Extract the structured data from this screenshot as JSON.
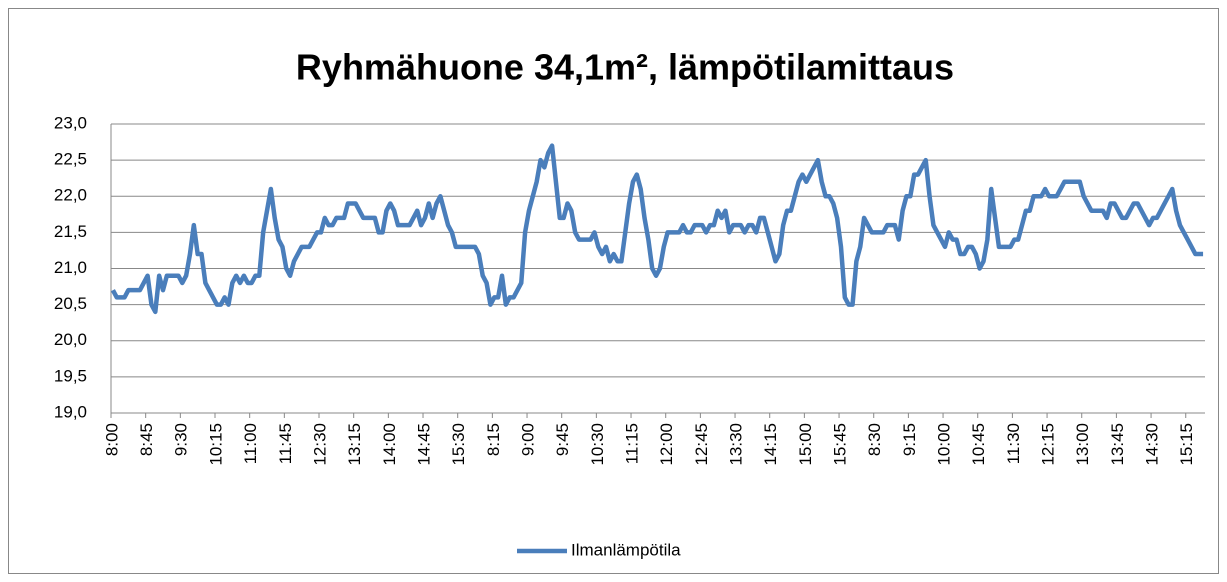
{
  "chart_data": {
    "type": "line",
    "title": "Ryhmähuone 34,1m², lämpötilamittaus",
    "categories": [
      "8:00",
      null,
      null,
      null,
      null,
      null,
      null,
      null,
      null,
      "8:45",
      null,
      null,
      null,
      null,
      null,
      null,
      null,
      null,
      "9:30",
      null,
      null,
      null,
      null,
      null,
      null,
      null,
      null,
      "10:15",
      null,
      null,
      null,
      null,
      null,
      null,
      null,
      null,
      "11:00",
      null,
      null,
      null,
      null,
      null,
      null,
      null,
      null,
      "11:45",
      null,
      null,
      null,
      null,
      null,
      null,
      null,
      null,
      "12:30",
      null,
      null,
      null,
      null,
      null,
      null,
      null,
      null,
      "13:15",
      null,
      null,
      null,
      null,
      null,
      null,
      null,
      null,
      "14:00",
      null,
      null,
      null,
      null,
      null,
      null,
      null,
      null,
      "14:45",
      null,
      null,
      null,
      null,
      null,
      null,
      null,
      null,
      "15:30",
      null,
      null,
      null,
      null,
      null,
      null,
      null,
      null,
      "8:15",
      null,
      null,
      null,
      null,
      null,
      null,
      null,
      null,
      "9:00",
      null,
      null,
      null,
      null,
      null,
      null,
      null,
      null,
      "9:45",
      null,
      null,
      null,
      null,
      null,
      null,
      null,
      null,
      "10:30",
      null,
      null,
      null,
      null,
      null,
      null,
      null,
      null,
      "11:15",
      null,
      null,
      null,
      null,
      null,
      null,
      null,
      null,
      "12:00",
      null,
      null,
      null,
      null,
      null,
      null,
      null,
      null,
      "12:45",
      null,
      null,
      null,
      null,
      null,
      null,
      null,
      null,
      "13:30",
      null,
      null,
      null,
      null,
      null,
      null,
      null,
      null,
      "14:15",
      null,
      null,
      null,
      null,
      null,
      null,
      null,
      null,
      "15:00",
      null,
      null,
      null,
      null,
      null,
      null,
      null,
      null,
      "15:45",
      null,
      null,
      null,
      null,
      null,
      null,
      null,
      null,
      "8:30",
      null,
      null,
      null,
      null,
      null,
      null,
      null,
      null,
      "9:15",
      null,
      null,
      null,
      null,
      null,
      null,
      null,
      null,
      "10:00",
      null,
      null,
      null,
      null,
      null,
      null,
      null,
      null,
      "10:45",
      null,
      null,
      null,
      null,
      null,
      null,
      null,
      null,
      "11:30",
      null,
      null,
      null,
      null,
      null,
      null,
      null,
      null,
      "12:15",
      null,
      null,
      null,
      null,
      null,
      null,
      null,
      null,
      "13:00",
      null,
      null,
      null,
      null,
      null,
      null,
      null,
      null,
      "13:45",
      null,
      null,
      null,
      null,
      null,
      null,
      null,
      null,
      "14:30",
      null,
      null,
      null,
      null,
      null,
      null,
      null,
      null,
      "15:15",
      null,
      null,
      null,
      null
    ],
    "series": [
      {
        "name": "Ilmanlämpötila",
        "color": "#4a7ebb",
        "values": [
          20.7,
          20.6,
          20.6,
          20.6,
          20.7,
          20.7,
          20.7,
          20.7,
          20.8,
          20.9,
          20.5,
          20.4,
          20.9,
          20.7,
          20.9,
          20.9,
          20.9,
          20.9,
          20.8,
          20.9,
          21.2,
          21.6,
          21.2,
          21.2,
          20.8,
          20.7,
          20.6,
          20.5,
          20.5,
          20.6,
          20.5,
          20.8,
          20.9,
          20.8,
          20.9,
          20.8,
          20.8,
          20.9,
          20.9,
          21.5,
          21.8,
          22.1,
          21.7,
          21.4,
          21.3,
          21.0,
          20.9,
          21.1,
          21.2,
          21.3,
          21.3,
          21.3,
          21.4,
          21.5,
          21.5,
          21.7,
          21.6,
          21.6,
          21.7,
          21.7,
          21.7,
          21.9,
          21.9,
          21.9,
          21.8,
          21.7,
          21.7,
          21.7,
          21.7,
          21.5,
          21.5,
          21.8,
          21.9,
          21.8,
          21.6,
          21.6,
          21.6,
          21.6,
          21.7,
          21.8,
          21.6,
          21.7,
          21.9,
          21.7,
          21.9,
          22.0,
          21.8,
          21.6,
          21.5,
          21.3,
          21.3,
          21.3,
          21.3,
          21.3,
          21.3,
          21.2,
          20.9,
          20.8,
          20.5,
          20.6,
          20.6,
          20.9,
          20.5,
          20.6,
          20.6,
          20.7,
          20.8,
          21.5,
          21.8,
          22.0,
          22.2,
          22.5,
          22.4,
          22.6,
          22.7,
          22.2,
          21.7,
          21.7,
          21.9,
          21.8,
          21.5,
          21.4,
          21.4,
          21.4,
          21.4,
          21.5,
          21.3,
          21.2,
          21.3,
          21.1,
          21.2,
          21.1,
          21.1,
          21.5,
          21.9,
          22.2,
          22.3,
          22.1,
          21.7,
          21.4,
          21.0,
          20.9,
          21.0,
          21.3,
          21.5,
          21.5,
          21.5,
          21.5,
          21.6,
          21.5,
          21.5,
          21.6,
          21.6,
          21.6,
          21.5,
          21.6,
          21.6,
          21.8,
          21.7,
          21.8,
          21.5,
          21.6,
          21.6,
          21.6,
          21.5,
          21.6,
          21.6,
          21.5,
          21.7,
          21.7,
          21.5,
          21.3,
          21.1,
          21.2,
          21.6,
          21.8,
          21.8,
          22.0,
          22.2,
          22.3,
          22.2,
          22.3,
          22.4,
          22.5,
          22.2,
          22.0,
          22.0,
          21.9,
          21.7,
          21.3,
          20.6,
          20.5,
          20.5,
          21.1,
          21.3,
          21.7,
          21.6,
          21.5,
          21.5,
          21.5,
          21.5,
          21.6,
          21.6,
          21.6,
          21.4,
          21.8,
          22.0,
          22.0,
          22.3,
          22.3,
          22.4,
          22.5,
          22.0,
          21.6,
          21.5,
          21.4,
          21.3,
          21.5,
          21.4,
          21.4,
          21.2,
          21.2,
          21.3,
          21.3,
          21.2,
          21.0,
          21.1,
          21.4,
          22.1,
          21.7,
          21.3,
          21.3,
          21.3,
          21.3,
          21.4,
          21.4,
          21.6,
          21.8,
          21.8,
          22.0,
          22.0,
          22.0,
          22.1,
          22.0,
          22.0,
          22.0,
          22.1,
          22.2,
          22.2,
          22.2,
          22.2,
          22.2,
          22.0,
          21.9,
          21.8,
          21.8,
          21.8,
          21.8,
          21.7,
          21.9,
          21.9,
          21.8,
          21.7,
          21.7,
          21.8,
          21.9,
          21.9,
          21.8,
          21.7,
          21.6,
          21.7,
          21.7,
          21.8,
          21.9,
          22.0,
          22.1,
          21.8,
          21.6,
          21.5,
          21.4,
          21.3,
          21.2,
          21.2,
          21.2
        ]
      }
    ],
    "ylim": [
      19,
      23
    ],
    "yticks": [
      {
        "value": 19,
        "label": "19,0"
      },
      {
        "value": 19.5,
        "label": "19,5"
      },
      {
        "value": 20,
        "label": "20,0"
      },
      {
        "value": 20.5,
        "label": "20,5"
      },
      {
        "value": 21,
        "label": "21,0"
      },
      {
        "value": 21.5,
        "label": "21,5"
      },
      {
        "value": 22,
        "label": "22,0"
      },
      {
        "value": 22.5,
        "label": "22,5"
      },
      {
        "value": 23,
        "label": "23,0"
      }
    ],
    "grid": true,
    "legend": "bottom"
  }
}
